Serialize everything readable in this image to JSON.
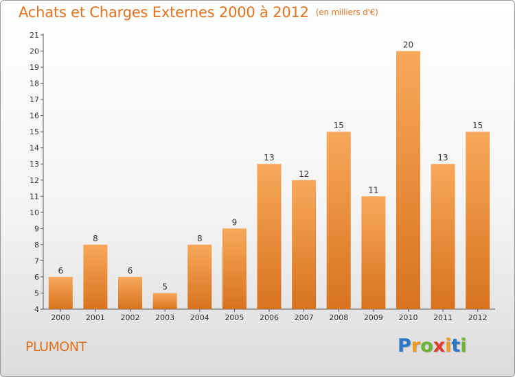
{
  "chart_data": {
    "type": "bar",
    "title": "Achats et Charges Externes 2000 à 2012",
    "unit_label": "(en milliers d'€)",
    "categories": [
      "2000",
      "2001",
      "2002",
      "2003",
      "2004",
      "2005",
      "2006",
      "2007",
      "2008",
      "2009",
      "2010",
      "2011",
      "2012"
    ],
    "values": [
      6,
      8,
      6,
      5,
      8,
      9,
      13,
      12,
      15,
      11,
      20,
      13,
      15
    ],
    "data_labels": [
      "6",
      "8",
      "6",
      "5",
      "8",
      "9",
      "13",
      "12",
      "15",
      "11",
      "20",
      "13",
      "15"
    ],
    "ylim": [
      4,
      21
    ],
    "yticks": [
      "4",
      "5",
      "6",
      "7",
      "8",
      "9",
      "10",
      "11",
      "12",
      "13",
      "14",
      "15",
      "16",
      "17",
      "18",
      "19",
      "20",
      "21"
    ],
    "grid": false,
    "bar_color_top": "#f7a85a",
    "bar_color_bottom": "#d8731f"
  },
  "footer": {
    "location": "PLUMONT",
    "brand": [
      "P",
      "r",
      "o",
      "x",
      "i",
      "t",
      "i"
    ],
    "brand_colors": [
      "#2a78c7",
      "#f29a1e",
      "#6ab534",
      "#e23a2d",
      "#f29a1e",
      "#2a78c7",
      "#6ab534"
    ]
  }
}
